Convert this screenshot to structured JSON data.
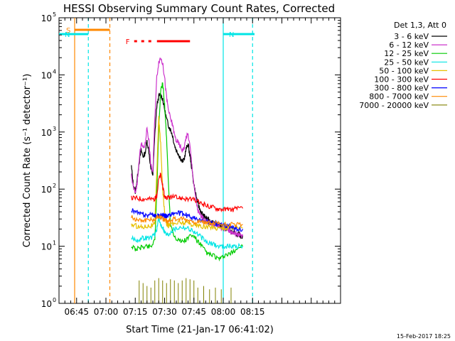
{
  "chart_data": {
    "type": "line",
    "title": "HESSI Observing Summary Count Rates, Corrected",
    "xlabel": "Start Time (21-Jan-17 06:41:02)",
    "ylabel": "Corrected Count Rate (s⁻¹ detector⁻¹)",
    "x_unit": "minutes after 06:00 UT",
    "xlim": [
      36,
      180
    ],
    "ylim_log10": [
      0,
      5
    ],
    "y_scale": "log",
    "x_ticks": [
      {
        "value": 45,
        "label": "06:45"
      },
      {
        "value": 60,
        "label": "07:00"
      },
      {
        "value": 75,
        "label": "07:15"
      },
      {
        "value": 90,
        "label": "07:30"
      },
      {
        "value": 105,
        "label": "07:45"
      },
      {
        "value": 120,
        "label": "08:00"
      },
      {
        "value": 135,
        "label": "08:15"
      }
    ],
    "y_ticks": [
      {
        "exp": 0,
        "label": "10",
        "sup": "0"
      },
      {
        "exp": 1,
        "label": "10",
        "sup": "1"
      },
      {
        "exp": 2,
        "label": "10",
        "sup": "2"
      },
      {
        "exp": 3,
        "label": "10",
        "sup": "3"
      },
      {
        "exp": 4,
        "label": "10",
        "sup": "4"
      },
      {
        "exp": 5,
        "label": "10",
        "sup": "5"
      }
    ],
    "legend_header": "Det 1,3, Att 0",
    "legend_position": "right",
    "series": [
      {
        "name": "3 - 6 keV",
        "color": "#000000",
        "x": [
          73,
          74,
          75,
          76,
          77,
          78,
          79,
          80,
          81,
          82,
          83,
          84,
          85,
          86,
          87,
          88,
          89,
          90,
          91,
          92,
          93,
          94,
          95,
          96,
          97,
          98,
          99,
          100,
          101,
          102,
          103,
          104,
          105,
          106,
          107,
          108,
          109,
          110,
          111,
          112,
          113,
          114,
          115,
          116,
          117,
          118,
          119,
          120,
          121,
          122,
          123,
          124,
          125,
          126,
          127,
          128,
          129,
          130
        ],
        "y": [
          250,
          120,
          90,
          150,
          300,
          480,
          370,
          420,
          700,
          450,
          220,
          180,
          900,
          2800,
          4200,
          4500,
          3800,
          2500,
          1700,
          1300,
          1100,
          900,
          600,
          480,
          420,
          360,
          300,
          330,
          500,
          620,
          380,
          220,
          120,
          80,
          55,
          45,
          38,
          34,
          32,
          30,
          28,
          27,
          26,
          25,
          24,
          23,
          22,
          21,
          20,
          20,
          19,
          18,
          17,
          17,
          16,
          16,
          15,
          15
        ]
      },
      {
        "name": "6 - 12 keV",
        "color": "#cc33cc",
        "x": [
          73,
          74,
          75,
          76,
          77,
          78,
          79,
          80,
          81,
          82,
          83,
          84,
          85,
          86,
          87,
          88,
          89,
          90,
          91,
          92,
          93,
          94,
          95,
          96,
          97,
          98,
          99,
          100,
          101,
          102,
          103,
          104,
          105,
          106,
          107,
          108,
          109,
          110,
          111,
          112,
          113,
          114,
          115,
          116,
          117,
          118,
          119,
          120,
          121,
          122,
          123,
          124,
          125,
          126,
          127,
          128,
          129,
          130
        ],
        "y": [
          170,
          110,
          85,
          130,
          320,
          650,
          520,
          600,
          1200,
          700,
          260,
          200,
          1800,
          9000,
          17000,
          20000,
          16000,
          9000,
          4000,
          2400,
          1700,
          1400,
          900,
          700,
          650,
          560,
          480,
          520,
          820,
          900,
          560,
          260,
          120,
          65,
          42,
          36,
          32,
          30,
          28,
          27,
          26,
          25,
          24,
          24,
          23,
          22,
          21,
          21,
          20,
          20,
          19,
          18,
          17,
          17,
          16,
          16,
          15,
          15
        ]
      },
      {
        "name": "12 - 25 keV",
        "color": "#00cc00",
        "x": [
          73,
          75,
          77,
          79,
          81,
          83,
          85,
          86,
          87,
          88,
          89,
          90,
          91,
          92,
          93,
          95,
          97,
          99,
          101,
          103,
          105,
          107,
          109,
          111,
          113,
          115,
          117,
          119,
          121,
          123,
          125,
          127,
          130
        ],
        "y": [
          10,
          9,
          9,
          10,
          10,
          10,
          13,
          80,
          1200,
          5000,
          7500,
          3000,
          800,
          120,
          25,
          15,
          13,
          12,
          13,
          15,
          15,
          12,
          10,
          8,
          7,
          7,
          6,
          6,
          7,
          7,
          8,
          9,
          10
        ]
      },
      {
        "name": "25 - 50 keV",
        "color": "#00e5e5",
        "x": [
          73,
          75,
          77,
          79,
          81,
          83,
          85,
          86,
          87,
          88,
          89,
          90,
          91,
          92,
          93,
          95,
          97,
          99,
          101,
          103,
          105,
          107,
          109,
          111,
          113,
          115,
          117,
          119,
          121,
          123,
          125,
          127,
          130
        ],
        "y": [
          14,
          13,
          13,
          14,
          14,
          14,
          16,
          20,
          30,
          24,
          22,
          18,
          16,
          16,
          18,
          20,
          21,
          22,
          21,
          20,
          18,
          16,
          14,
          12,
          11,
          11,
          10,
          10,
          10,
          10,
          10,
          10,
          10
        ]
      },
      {
        "name": "50 - 100 keV",
        "color": "#e6c000",
        "x": [
          73,
          75,
          77,
          79,
          81,
          83,
          85,
          86,
          87,
          88,
          89,
          90,
          91,
          92,
          93,
          95,
          97,
          99,
          101,
          103,
          105,
          107,
          109,
          111,
          113,
          115,
          117,
          119,
          121,
          123,
          125,
          127,
          130
        ],
        "y": [
          24,
          23,
          22,
          22,
          23,
          23,
          24,
          200,
          1800,
          600,
          100,
          40,
          25,
          23,
          24,
          25,
          26,
          26,
          26,
          25,
          24,
          23,
          22,
          22,
          22,
          21,
          21,
          21,
          21,
          21,
          21,
          21,
          21
        ]
      },
      {
        "name": "100 - 300 keV",
        "color": "#ff0000",
        "x": [
          73,
          75,
          77,
          79,
          81,
          83,
          85,
          86,
          87,
          88,
          89,
          90,
          91,
          92,
          93,
          95,
          97,
          99,
          101,
          103,
          105,
          107,
          109,
          111,
          113,
          115,
          117,
          119,
          121,
          123,
          125,
          127,
          130
        ],
        "y": [
          70,
          70,
          69,
          68,
          68,
          67,
          68,
          75,
          150,
          180,
          110,
          75,
          70,
          70,
          72,
          72,
          70,
          70,
          68,
          66,
          64,
          60,
          56,
          52,
          50,
          48,
          46,
          45,
          44,
          44,
          44,
          45,
          46
        ]
      },
      {
        "name": "300 - 800 keV",
        "color": "#0000ff",
        "x": [
          73,
          75,
          77,
          79,
          81,
          83,
          85,
          86,
          87,
          88,
          89,
          90,
          91,
          92,
          93,
          95,
          97,
          99,
          101,
          103,
          105,
          107,
          109,
          111,
          113,
          115,
          117,
          119,
          121,
          123,
          125,
          127,
          130
        ],
        "y": [
          44,
          40,
          37,
          36,
          35,
          35,
          35,
          34,
          34,
          35,
          35,
          34,
          34,
          35,
          36,
          38,
          38,
          37,
          35,
          33,
          31,
          29,
          28,
          27,
          26,
          25,
          24,
          24,
          23,
          22,
          21,
          20,
          20
        ]
      },
      {
        "name": "800 - 7000 keV",
        "color": "#ff8800",
        "x": [
          73,
          75,
          77,
          79,
          81,
          83,
          85,
          86,
          87,
          88,
          89,
          90,
          91,
          92,
          93,
          95,
          97,
          99,
          101,
          103,
          105,
          107,
          109,
          111,
          113,
          115,
          117,
          119,
          121,
          123,
          125,
          127,
          130
        ],
        "y": [
          32,
          30,
          29,
          29,
          29,
          29,
          30,
          32,
          34,
          32,
          30,
          29,
          28,
          28,
          29,
          30,
          30,
          30,
          29,
          28,
          27,
          27,
          26,
          26,
          25,
          25,
          25,
          24,
          24,
          24,
          24,
          24,
          24
        ]
      },
      {
        "name": "7000 - 20000 keV",
        "color": "#808000",
        "x": [
          77,
          79,
          81,
          83,
          85,
          87,
          89,
          91,
          93,
          95,
          97,
          99,
          101,
          103,
          105,
          107,
          110,
          113,
          116,
          119,
          124
        ],
        "y": [
          2,
          1.8,
          1.6,
          1.5,
          2,
          2.2,
          2,
          1.8,
          2.1,
          2,
          1.8,
          2,
          2.2,
          2.1,
          2,
          1.5,
          1.6,
          1.4,
          1.5,
          1.4,
          1.5
        ]
      }
    ],
    "annotations": {
      "flags": [
        {
          "label": "S",
          "color": "#ff8800",
          "x_start": 44,
          "x_end": 62
        },
        {
          "label": "N",
          "color": "#00e5e5",
          "x_start": 36,
          "x_end": 51
        },
        {
          "label": "N",
          "color": "#00e5e5",
          "x_start": 120,
          "x_end": 136
        },
        {
          "label": "F",
          "color": "#ff0000",
          "x_start": 73,
          "x_end": 103
        }
      ],
      "vertical_lines": [
        {
          "x": 44,
          "color": "#ff8800",
          "style": "solid"
        },
        {
          "x": 51,
          "color": "#00e5e5",
          "style": "dashed"
        },
        {
          "x": 62,
          "color": "#ff8800",
          "style": "dashed"
        },
        {
          "x": 120,
          "color": "#00e5e5",
          "style": "solid"
        },
        {
          "x": 135,
          "color": "#00e5e5",
          "style": "dashed"
        }
      ]
    },
    "footer_date": "15-Feb-2017 18:25"
  }
}
